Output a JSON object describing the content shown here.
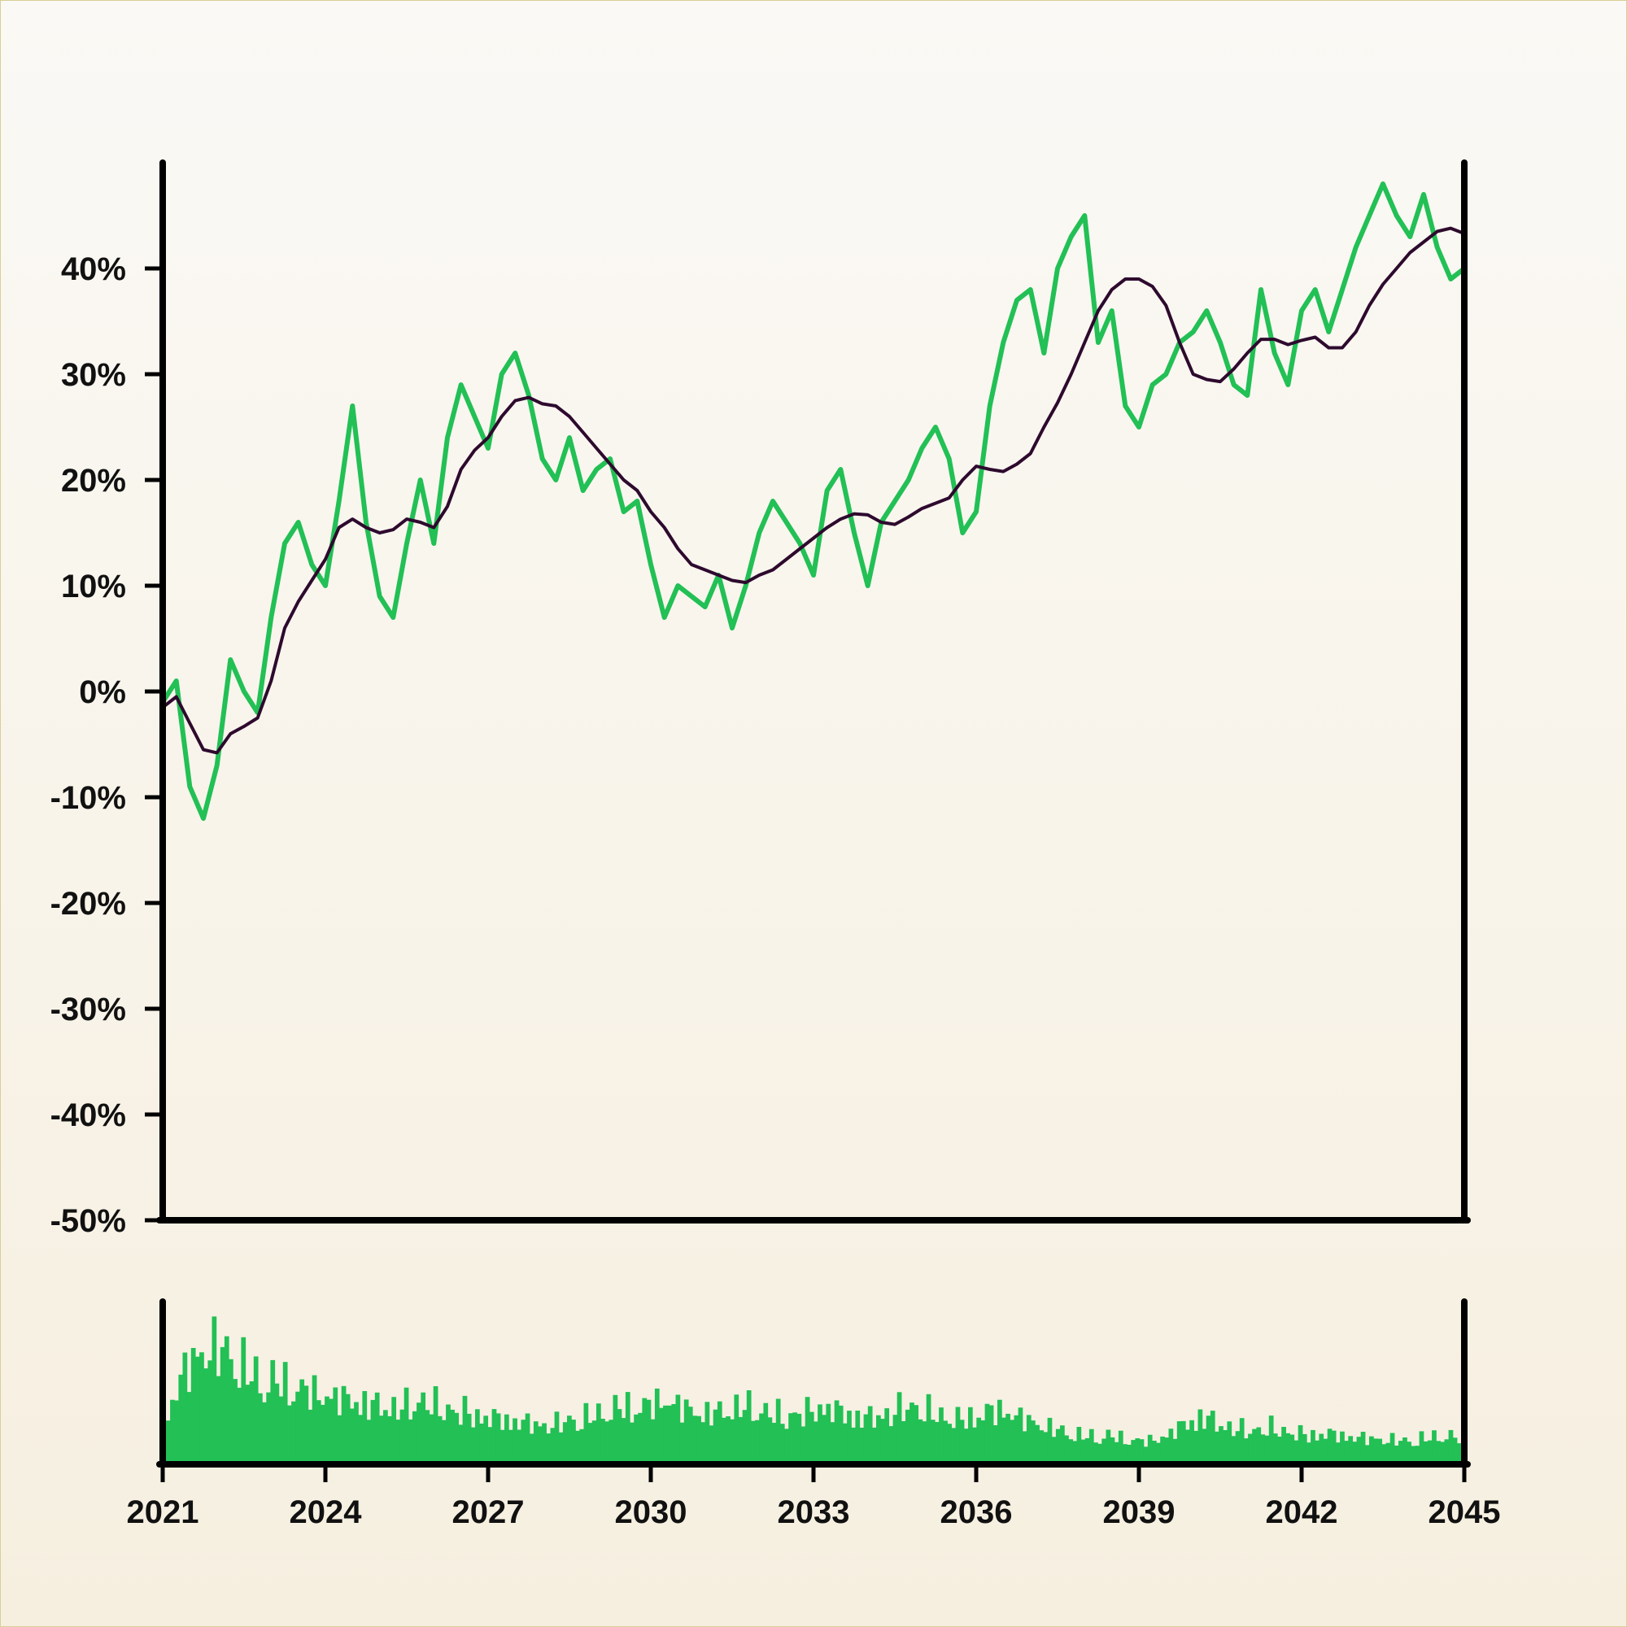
{
  "chart_data": {
    "type": "line",
    "title": "",
    "xlabel": "",
    "ylabel": "",
    "xlim": [
      2021,
      2045
    ],
    "ylim": [
      -50,
      50
    ],
    "x_ticks": [
      "2021",
      "2024",
      "2027",
      "2030",
      "2033",
      "2036",
      "2039",
      "2042",
      "2045"
    ],
    "y_ticks": [
      "-50%",
      "-40%",
      "-30%",
      "-20%",
      "-10%",
      "0%",
      "10%",
      "20%",
      "30%",
      "40%"
    ],
    "colors": {
      "price": "#22c055",
      "moving_average": "#2e0a2e",
      "volume": "#22c055",
      "axes": "#000000"
    },
    "series": [
      {
        "role": "price",
        "x": [
          2021.0,
          2021.25,
          2021.5,
          2021.75,
          2022.0,
          2022.25,
          2022.5,
          2022.75,
          2023.0,
          2023.25,
          2023.5,
          2023.75,
          2024.0,
          2024.25,
          2024.5,
          2024.75,
          2025.0,
          2025.25,
          2025.5,
          2025.75,
          2026.0,
          2026.25,
          2026.5,
          2026.75,
          2027.0,
          2027.25,
          2027.5,
          2027.75,
          2028.0,
          2028.25,
          2028.5,
          2028.75,
          2029.0,
          2029.25,
          2029.5,
          2029.75,
          2030.0,
          2030.25,
          2030.5,
          2030.75,
          2031.0,
          2031.25,
          2031.5,
          2031.75,
          2032.0,
          2032.25,
          2032.5,
          2032.75,
          2033.0,
          2033.25,
          2033.5,
          2033.75,
          2034.0,
          2034.25,
          2034.5,
          2034.75,
          2035.0,
          2035.25,
          2035.5,
          2035.75,
          2036.0,
          2036.25,
          2036.5,
          2036.75,
          2037.0,
          2037.25,
          2037.5,
          2037.75,
          2038.0,
          2038.25,
          2038.5,
          2038.75,
          2039.0,
          2039.25,
          2039.5,
          2039.75,
          2040.0,
          2040.25,
          2040.5,
          2040.75,
          2041.0,
          2041.25,
          2041.5,
          2041.75,
          2042.0,
          2042.25,
          2042.5,
          2042.75,
          2043.0,
          2043.25,
          2043.5,
          2043.75,
          2044.0,
          2044.25,
          2044.5,
          2044.75,
          2045.0
        ],
        "values": [
          -1,
          1,
          -9,
          -12,
          -7,
          3,
          0,
          -2,
          7,
          14,
          16,
          12,
          10,
          18,
          27,
          16,
          9,
          7,
          14,
          20,
          14,
          24,
          29,
          26,
          23,
          30,
          32,
          28,
          22,
          20,
          24,
          19,
          21,
          22,
          17,
          18,
          12,
          7,
          10,
          9,
          8,
          11,
          6,
          10,
          15,
          18,
          16,
          14,
          11,
          19,
          21,
          15,
          10,
          16,
          18,
          20,
          23,
          25,
          22,
          15,
          17,
          27,
          33,
          37,
          38,
          32,
          40,
          43,
          45,
          33,
          36,
          27,
          25,
          29,
          30,
          33,
          34,
          36,
          33,
          29,
          28,
          38,
          32,
          29,
          36,
          38,
          34,
          38,
          42,
          45,
          48,
          45,
          43,
          47,
          42,
          39,
          40
        ],
        "name": ""
      },
      {
        "role": "moving_average",
        "x": [
          2021.0,
          2021.25,
          2021.5,
          2021.75,
          2022.0,
          2022.25,
          2022.5,
          2022.75,
          2023.0,
          2023.25,
          2023.5,
          2023.75,
          2024.0,
          2024.25,
          2024.5,
          2024.75,
          2025.0,
          2025.25,
          2025.5,
          2025.75,
          2026.0,
          2026.25,
          2026.5,
          2026.75,
          2027.0,
          2027.25,
          2027.5,
          2027.75,
          2028.0,
          2028.25,
          2028.5,
          2028.75,
          2029.0,
          2029.25,
          2029.5,
          2029.75,
          2030.0,
          2030.25,
          2030.5,
          2030.75,
          2031.0,
          2031.25,
          2031.5,
          2031.75,
          2032.0,
          2032.25,
          2032.5,
          2032.75,
          2033.0,
          2033.25,
          2033.5,
          2033.75,
          2034.0,
          2034.25,
          2034.5,
          2034.75,
          2035.0,
          2035.25,
          2035.5,
          2035.75,
          2036.0,
          2036.25,
          2036.5,
          2036.75,
          2037.0,
          2037.25,
          2037.5,
          2037.75,
          2038.0,
          2038.25,
          2038.5,
          2038.75,
          2039.0,
          2039.25,
          2039.5,
          2039.75,
          2040.0,
          2040.25,
          2040.5,
          2040.75,
          2041.0,
          2041.25,
          2041.5,
          2041.75,
          2042.0,
          2042.25,
          2042.5,
          2042.75,
          2043.0,
          2043.25,
          2043.5,
          2043.75,
          2044.0,
          2044.25,
          2044.5,
          2044.75,
          2045.0
        ],
        "values": [
          -1.5,
          -0.5,
          -3,
          -5.5,
          -5.8,
          -4,
          -3.3,
          -2.5,
          1,
          6,
          8.5,
          10.5,
          12.5,
          15.5,
          16.3,
          15.5,
          15,
          15.3,
          16.3,
          16,
          15.5,
          17.5,
          21,
          22.8,
          24,
          26,
          27.5,
          27.8,
          27.2,
          27,
          26,
          24.5,
          23,
          21.5,
          20,
          19,
          17,
          15.5,
          13.5,
          12,
          11.5,
          11,
          10.5,
          10.3,
          11,
          11.5,
          12.5,
          13.5,
          14.5,
          15.5,
          16.3,
          16.8,
          16.7,
          16,
          15.8,
          16.5,
          17.3,
          17.8,
          18.3,
          20,
          21.3,
          21,
          20.8,
          21.5,
          22.5,
          25,
          27.3,
          30,
          33,
          36,
          38,
          39,
          39,
          38.3,
          36.5,
          33,
          30,
          29.5,
          29.3,
          30.5,
          32,
          33.3,
          33.3,
          32.8,
          33.2,
          33.5,
          32.5,
          32.5,
          34,
          36.5,
          38.5,
          40,
          41.5,
          42.5,
          43.5,
          43.8,
          43.3
        ],
        "name": ""
      }
    ],
    "volume": {
      "x_start": 2021.0,
      "x_end": 2045.0,
      "relative": [
        55,
        90,
        110,
        120,
        118,
        112,
        95,
        85,
        88,
        80,
        78,
        72,
        70,
        68,
        65,
        62,
        60,
        58,
        62,
        66,
        60,
        56,
        55,
        50,
        48,
        46,
        44,
        42,
        40,
        42,
        46,
        48,
        52,
        56,
        60,
        58,
        62,
        66,
        60,
        55,
        52,
        54,
        58,
        60,
        56,
        52,
        50,
        52,
        56,
        58,
        54,
        50,
        48,
        50,
        55,
        60,
        58,
        52,
        48,
        46,
        50,
        54,
        56,
        50,
        45,
        40,
        36,
        32,
        30,
        28,
        30,
        26,
        25,
        24,
        28,
        36,
        44,
        50,
        42,
        38,
        36,
        35,
        38,
        34,
        32,
        30,
        32,
        30,
        28,
        27,
        26,
        25,
        24,
        26,
        28,
        30,
        27
      ]
    }
  }
}
